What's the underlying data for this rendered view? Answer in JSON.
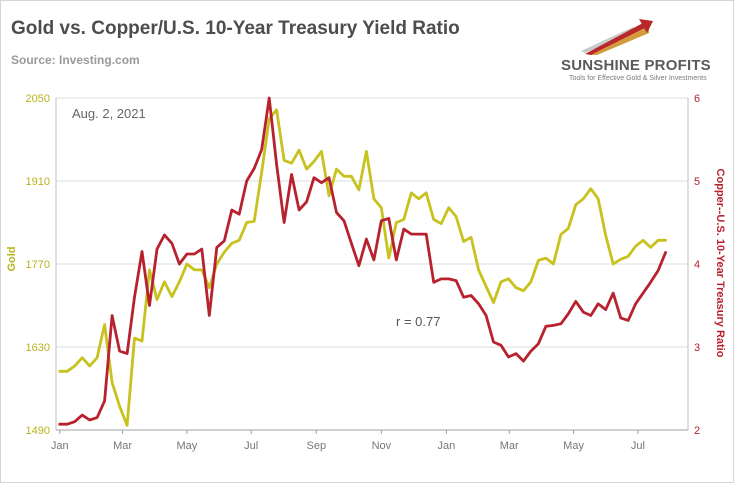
{
  "header": {
    "title": "Gold vs. Copper/U.S. 10-Year Treasury Yield Ratio",
    "source": "Source: Investing.com"
  },
  "logo": {
    "brand": "SUNSHINE PROFITS",
    "tagline": "Tools for Effective Gold & Silver Investments"
  },
  "colors": {
    "gold": "#c7c21d",
    "ratio": "#b8222f",
    "grid": "#dcdcdc",
    "gold_axis": "#b9b21c",
    "ratio_axis": "#b8222f",
    "x_axis": "#777777"
  },
  "chart_data": {
    "type": "line",
    "annotation_date": "Aug. 2, 2021",
    "annotation_r": "r = 0.77",
    "ylabel": "Gold",
    "y2label": "Copper--U.S. 10-Year Treasury Ratio",
    "ylim": [
      1490,
      2050
    ],
    "yticks": [
      1490,
      1630,
      1770,
      1910,
      2050
    ],
    "y2lim": [
      2,
      6
    ],
    "y2ticks": [
      2,
      3,
      4,
      5,
      6
    ],
    "xticks": [
      {
        "label": "Jan",
        "x": 0
      },
      {
        "label": "Mar",
        "x": 8.4
      },
      {
        "label": "May",
        "x": 17.0
      },
      {
        "label": "Jul",
        "x": 25.6
      },
      {
        "label": "Sep",
        "x": 34.3
      },
      {
        "label": "Nov",
        "x": 43.0
      },
      {
        "label": "Jan",
        "x": 51.7
      },
      {
        "label": "Mar",
        "x": 60.1
      },
      {
        "label": "May",
        "x": 68.7
      },
      {
        "label": "Jul",
        "x": 77.3
      }
    ],
    "xlim": [
      -0.5,
      84
    ],
    "grid": true,
    "series": [
      {
        "key": "gold",
        "axis": "left",
        "x": [
          0,
          1,
          2,
          3,
          4,
          5,
          6,
          7,
          8,
          9,
          10,
          11,
          12,
          13,
          14,
          15,
          16,
          17,
          18,
          19,
          20,
          21,
          22,
          23,
          24,
          25,
          26,
          27,
          28,
          29,
          30,
          31,
          32,
          33,
          34,
          35,
          36,
          37,
          38,
          39,
          40,
          41,
          42,
          43,
          44,
          45,
          46,
          47,
          48,
          49,
          50,
          51,
          52,
          53,
          54,
          55,
          56,
          57,
          58,
          59,
          60,
          61,
          62,
          63,
          64,
          65,
          66,
          67,
          68,
          69,
          70,
          71,
          72,
          73,
          74,
          75,
          76,
          77,
          78,
          79,
          80,
          81
        ],
        "values": [
          1589,
          1589,
          1598,
          1612,
          1598,
          1612,
          1668,
          1570,
          1530,
          1498,
          1645,
          1640,
          1760,
          1710,
          1740,
          1715,
          1740,
          1770,
          1760,
          1760,
          1730,
          1770,
          1790,
          1805,
          1810,
          1840,
          1842,
          1925,
          2015,
          2030,
          1945,
          1940,
          1962,
          1930,
          1943,
          1960,
          1885,
          1930,
          1918,
          1918,
          1895,
          1960,
          1880,
          1865,
          1780,
          1840,
          1845,
          1890,
          1880,
          1890,
          1845,
          1838,
          1865,
          1850,
          1808,
          1815,
          1760,
          1732,
          1705,
          1740,
          1745,
          1730,
          1725,
          1740,
          1776,
          1780,
          1770,
          1820,
          1830,
          1870,
          1880,
          1897,
          1880,
          1818,
          1770,
          1778,
          1783,
          1800,
          1810,
          1798,
          1810,
          1810
        ]
      },
      {
        "key": "ratio",
        "axis": "right",
        "x": [
          0,
          1,
          2,
          3,
          4,
          5,
          6,
          7,
          8,
          9,
          10,
          11,
          12,
          13,
          14,
          15,
          16,
          17,
          18,
          19,
          20,
          21,
          22,
          23,
          24,
          25,
          26,
          27,
          28,
          29,
          30,
          31,
          32,
          33,
          34,
          35,
          36,
          37,
          38,
          39,
          40,
          41,
          42,
          43,
          44,
          45,
          46,
          47,
          48,
          49,
          50,
          51,
          52,
          53,
          54,
          55,
          56,
          57,
          58,
          59,
          60,
          61,
          62,
          63,
          64,
          65,
          66,
          67,
          68,
          69,
          70,
          71,
          72,
          73,
          74,
          75,
          76,
          77,
          78,
          79,
          80,
          81
        ],
        "values": [
          2.07,
          2.07,
          2.1,
          2.18,
          2.12,
          2.15,
          2.35,
          3.38,
          2.95,
          2.92,
          3.6,
          4.15,
          3.5,
          4.18,
          4.35,
          4.25,
          4.0,
          4.12,
          4.12,
          4.18,
          3.38,
          4.2,
          4.28,
          4.65,
          4.6,
          5.0,
          5.15,
          5.38,
          6.0,
          5.2,
          4.5,
          5.08,
          4.65,
          4.75,
          5.04,
          4.98,
          5.04,
          4.62,
          4.52,
          4.25,
          3.98,
          4.3,
          4.05,
          4.52,
          4.55,
          4.05,
          4.42,
          4.36,
          4.36,
          4.36,
          3.78,
          3.82,
          3.82,
          3.8,
          3.6,
          3.62,
          3.52,
          3.38,
          3.06,
          3.02,
          2.88,
          2.92,
          2.83,
          2.95,
          3.04,
          3.25,
          3.26,
          3.28,
          3.4,
          3.55,
          3.42,
          3.38,
          3.52,
          3.45,
          3.65,
          3.35,
          3.32,
          3.52,
          3.65,
          3.78,
          3.92,
          4.14
        ]
      }
    ]
  }
}
